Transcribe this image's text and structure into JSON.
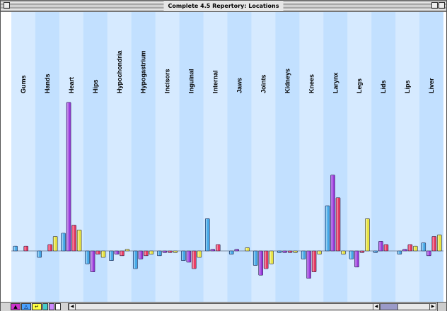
{
  "window": {
    "title": "Complete 4.5 Repertory: Locations"
  },
  "chart_data": {
    "type": "bar",
    "categories": [
      "Gums",
      "Hands",
      "Heart",
      "Hips",
      "Hypochondria",
      "Hypogastrium",
      "Incisors",
      "Inguinal",
      "Internal",
      "Jaws",
      "Joints",
      "Kidneys",
      "Knees",
      "Larynx",
      "Legs",
      "Lids",
      "Lips",
      "Liver"
    ],
    "series": [
      {
        "color": "#44a8e8",
        "values": [
          3,
          -4,
          11,
          -8,
          -6,
          -11,
          -3,
          -6,
          20,
          -2,
          -9,
          -1,
          -5,
          28,
          -5,
          -1,
          -2,
          5
        ]
      },
      {
        "color": "#9c3cdc",
        "values": [
          0,
          0,
          92,
          -13,
          -2,
          -5,
          -1,
          -7,
          1,
          1,
          -15,
          -1,
          -17,
          47,
          -10,
          6,
          1,
          -3
        ]
      },
      {
        "color": "#e83c64",
        "values": [
          3,
          4,
          16,
          -2,
          -3,
          -3,
          -1,
          -11,
          4,
          0,
          -11,
          -1,
          -13,
          33,
          -1,
          4,
          4,
          9
        ]
      },
      {
        "color": "#e8e440",
        "values": [
          0,
          9,
          13,
          -4,
          1,
          -2,
          -1,
          -4,
          0,
          2,
          -8,
          -1,
          -2,
          -2,
          20,
          0,
          3,
          10
        ]
      }
    ],
    "ylim": [
      -20,
      95
    ],
    "band_colors": [
      "#d6eaff",
      "#c2e0ff"
    ],
    "grid": false
  }
}
